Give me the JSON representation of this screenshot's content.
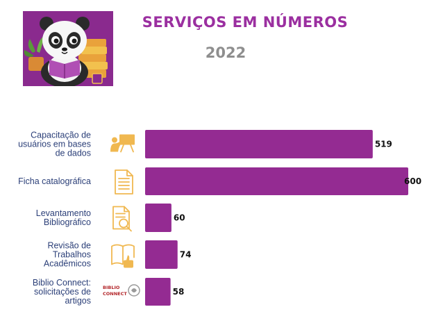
{
  "header": {
    "title": "SERVIÇOS EM NÚMEROS",
    "year": "2022"
  },
  "colors": {
    "bar": "#942b92",
    "title": "#9b2fa0",
    "year": "#8e8e8e",
    "label": "#2b3f78",
    "icon": "#f0b850"
  },
  "chart_data": {
    "type": "bar",
    "orientation": "horizontal",
    "title": "SERVIÇOS EM NÚMEROS",
    "subtitle": "2022",
    "categories": [
      [
        "Capacitação de",
        "usuários em bases",
        "de dados"
      ],
      [
        "Ficha catalográfica"
      ],
      [
        "Levantamento",
        "Bibliográfico"
      ],
      [
        "Revisão de",
        "Trabalhos",
        "Acadêmicos"
      ],
      [
        "Biblio Connect:",
        "solicitações de",
        "artigos"
      ]
    ],
    "values": [
      519,
      600,
      60,
      74,
      58
    ],
    "icons": [
      "presentation-icon",
      "document-icon",
      "document-search-icon",
      "book-thumbs-up-icon",
      "biblio-connect-logo"
    ],
    "xlim": [
      0,
      600
    ],
    "grid": false,
    "legend": "none"
  },
  "logo": {
    "line1": "BIBLIO",
    "line2": "CONNECT"
  }
}
